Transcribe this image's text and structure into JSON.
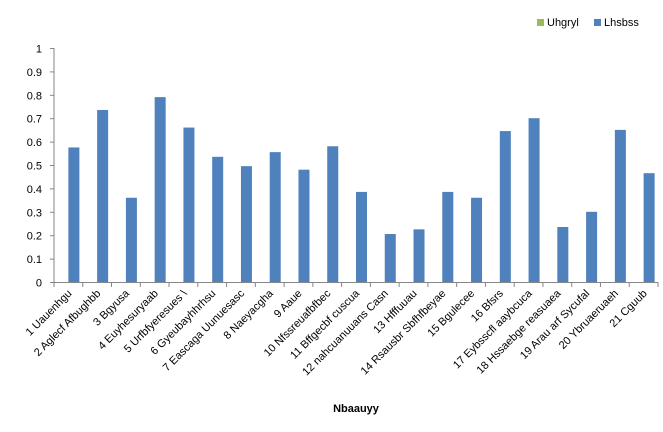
{
  "chart_data": {
    "type": "bar",
    "title": "",
    "xlabel": "Nbaauyy",
    "ylabel": "",
    "ylim": [
      0,
      1
    ],
    "yticks": [
      "0",
      "0.1",
      "0.2",
      "0.3",
      "0.4",
      "0.5",
      "0.6",
      "0.7",
      "0.8",
      "0.9",
      "1"
    ],
    "grid": false,
    "legend_position": "top-right",
    "categories": [
      "1 Uauenhgu",
      "2 Aglecf Afbughbb",
      "3 Bgyusa",
      "4 Euyhesuryaab",
      "5 Urfbfyeresues \\",
      "6 Gyeubayhhrhsu",
      "7 Eascaga Uunuesasc",
      "8 Naeyacgha",
      "9 Aaue",
      "10 Nfssreuafbfbec",
      "11 Bffgecbf cuscua",
      "12 nahcuanuuans Casn",
      "13 Hfffuuau",
      "14 Rsausbr Sbfhfbeyae",
      "15 Bgulecee",
      "16 Bfsrs",
      "17 Eybsscfl aaybcuca",
      "18 Hssaebge reasuaea",
      "19 Arau arf Sycufal",
      "20 Ybruaeruaeh",
      "21 Cguub"
    ],
    "series": [
      {
        "name": "Uhgryl",
        "color": "#9BBB59",
        "values": [
          0,
          0,
          0,
          0,
          0,
          0,
          0,
          0,
          0,
          0,
          0,
          0,
          0,
          0,
          0,
          0,
          0,
          0,
          0,
          0,
          0
        ]
      },
      {
        "name": "Lhsbss",
        "color": "#4F81BD",
        "values": [
          0.575,
          0.735,
          0.36,
          0.79,
          0.66,
          0.535,
          0.495,
          0.555,
          0.48,
          0.58,
          0.385,
          0.205,
          0.225,
          0.385,
          0.36,
          0.645,
          0.7,
          0.235,
          0.3,
          0.65,
          0.465
        ]
      }
    ]
  }
}
